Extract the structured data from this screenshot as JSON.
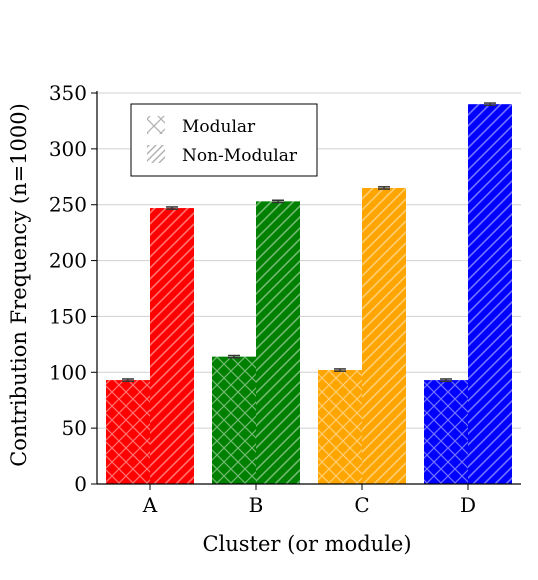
{
  "chart_data": {
    "type": "bar",
    "categories": [
      "A",
      "B",
      "C",
      "D"
    ],
    "series": [
      {
        "name": "Modular",
        "values": [
          93,
          114,
          102,
          93
        ],
        "errors": [
          1,
          1,
          1,
          1
        ],
        "hatch": "crosshatch"
      },
      {
        "name": "Non-Modular",
        "values": [
          247,
          253,
          265,
          340
        ],
        "errors": [
          1,
          1,
          1,
          1
        ],
        "hatch": "diagonal"
      }
    ],
    "category_colors": [
      "#ff0000",
      "#008000",
      "#ffa500",
      "#0000ff"
    ],
    "xlabel": "Cluster (or module)",
    "ylabel": "Contribution Frequency (n=1000)",
    "ylim": [
      0,
      350
    ],
    "yticks": [
      0,
      50,
      100,
      150,
      200,
      250,
      300,
      350
    ],
    "grid": true,
    "legend_position": "top-left"
  }
}
